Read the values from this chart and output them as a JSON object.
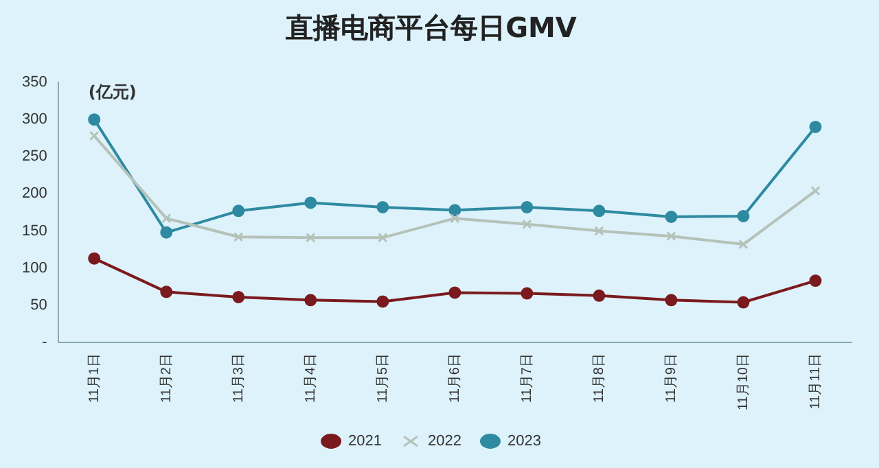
{
  "chart_data": {
    "type": "line",
    "title": "直播电商平台每日GMV",
    "ylabel": "(亿元)",
    "categories": [
      "11月1日",
      "11月2日",
      "11月3日",
      "11月4日",
      "11月5日",
      "11月6日",
      "11月7日",
      "11月8日",
      "11月9日",
      "11月10日",
      "11月11日"
    ],
    "series": [
      {
        "name": "2021",
        "color": "#7b1a1e",
        "marker": "circle",
        "values": [
          113,
          68,
          61,
          57,
          55,
          67,
          66,
          63,
          57,
          54,
          83
        ]
      },
      {
        "name": "2022",
        "color": "#b5c2b8",
        "marker": "cross",
        "values": [
          278,
          167,
          142,
          141,
          141,
          167,
          159,
          150,
          143,
          132,
          204
        ]
      },
      {
        "name": "2023",
        "color": "#2e8aa0",
        "marker": "circle",
        "values": [
          300,
          148,
          177,
          188,
          182,
          178,
          182,
          177,
          169,
          170,
          290
        ]
      }
    ],
    "ylim": [
      0,
      350
    ],
    "yticks": [
      {
        "value": 0,
        "label": "-"
      },
      50,
      100,
      150,
      200,
      250,
      300,
      350
    ],
    "grid": false,
    "legend": "bottom",
    "line_style": "solid"
  }
}
